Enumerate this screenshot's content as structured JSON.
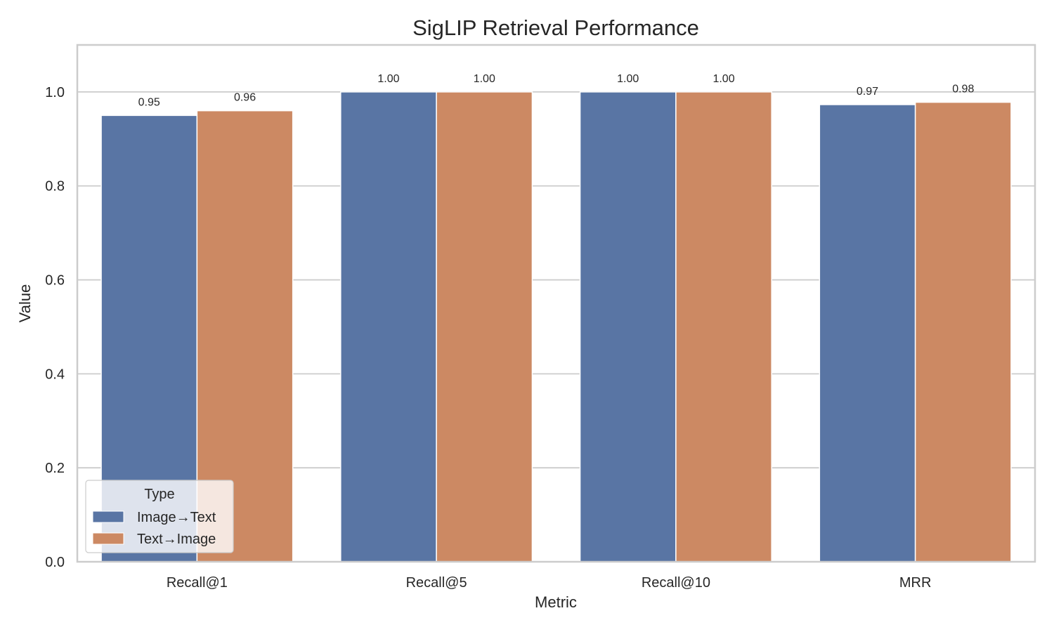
{
  "chart_data": {
    "type": "bar",
    "title": "SigLIP Retrieval Performance",
    "xlabel": "Metric",
    "ylabel": "Value",
    "categories": [
      "Recall@1",
      "Recall@5",
      "Recall@10",
      "MRR"
    ],
    "ylim": [
      0,
      1.1
    ],
    "yticks": [
      0.0,
      0.2,
      0.4,
      0.6,
      0.8,
      1.0
    ],
    "ytick_labels": [
      "0.0",
      "0.2",
      "0.4",
      "0.6",
      "0.8",
      "1.0"
    ],
    "grid": "horizontal",
    "legend": {
      "title": "Type",
      "position": "lower-left"
    },
    "series": [
      {
        "name": "Image→Text",
        "color": "#5975a4",
        "values": [
          0.95,
          1.0,
          1.0,
          0.973
        ],
        "labels": [
          "0.95",
          "1.00",
          "1.00",
          "0.97"
        ]
      },
      {
        "name": "Text→Image",
        "color": "#cc8963",
        "values": [
          0.96,
          1.0,
          1.0,
          0.978
        ],
        "labels": [
          "0.96",
          "1.00",
          "1.00",
          "0.98"
        ]
      }
    ]
  }
}
